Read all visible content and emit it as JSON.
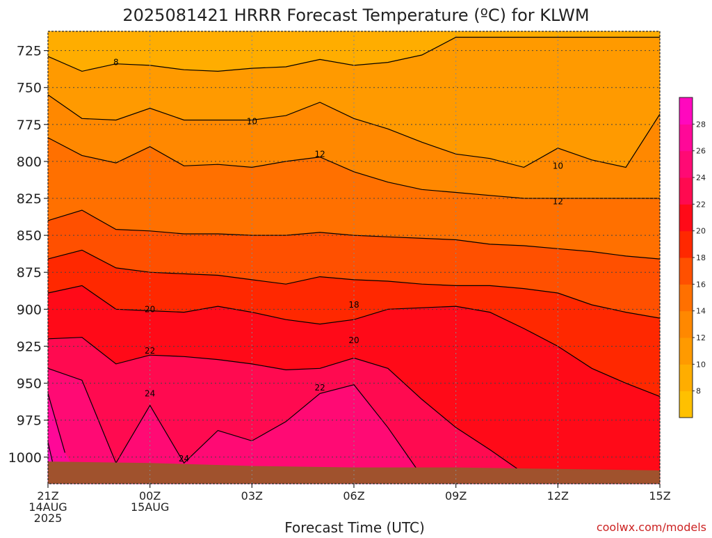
{
  "chart_data": {
    "type": "heatmap",
    "title": "2025081421 HRRR Forecast Temperature (ºC) for KLWM",
    "xlabel": "Forecast Time (UTC)",
    "ylabel": "",
    "watermark": "coolwx.com/models",
    "x_hours": [
      0,
      3,
      6,
      9,
      12,
      15,
      18
    ],
    "x_tick_labels": [
      [
        "21Z",
        "14AUG",
        "2025"
      ],
      [
        "00Z",
        "15AUG"
      ],
      [
        "03Z"
      ],
      [
        "06Z"
      ],
      [
        "09Z"
      ],
      [
        "12Z"
      ],
      [
        "15Z"
      ]
    ],
    "y_ticks": [
      725,
      750,
      775,
      800,
      825,
      850,
      875,
      900,
      925,
      950,
      975,
      1000
    ],
    "ylim": [
      1018,
      712
    ],
    "xlim": [
      0,
      18
    ],
    "colorbar": {
      "levels": [
        6,
        8,
        10,
        12,
        14,
        16,
        18,
        20,
        22,
        24,
        26,
        28,
        30
      ],
      "tick_labels": [
        "8",
        "10",
        "12",
        "14",
        "16",
        "18",
        "20",
        "22",
        "24",
        "26",
        "28"
      ],
      "colors": [
        "#ffc000",
        "#ffad00",
        "#ff9a00",
        "#ff8800",
        "#ff7000",
        "#ff5000",
        "#ff2800",
        "#ff0a18",
        "#ff0a50",
        "#ff0a74",
        "#ff0898",
        "#ff08be"
      ]
    },
    "contour_labels": [
      {
        "text": "8",
        "hour": 2,
        "p": 733
      },
      {
        "text": "10",
        "hour": 6,
        "p": 773
      },
      {
        "text": "10",
        "hour": 15,
        "p": 803
      },
      {
        "text": "12",
        "hour": 8,
        "p": 795
      },
      {
        "text": "12",
        "hour": 15,
        "p": 827
      },
      {
        "text": "18",
        "hour": 9,
        "p": 897
      },
      {
        "text": "20",
        "hour": 3,
        "p": 900
      },
      {
        "text": "20",
        "hour": 9,
        "p": 921
      },
      {
        "text": "22",
        "hour": 3,
        "p": 928
      },
      {
        "text": "22",
        "hour": 8,
        "p": 953
      },
      {
        "text": "24",
        "hour": 3,
        "p": 957
      },
      {
        "text": "24",
        "hour": 4,
        "p": 1001
      }
    ],
    "series": [
      {
        "level": 6,
        "hour": [
          0,
          18
        ],
        "p": [
          712,
          712
        ]
      },
      {
        "level": 8,
        "hour": [
          0,
          1,
          2,
          3,
          5,
          7,
          9,
          11,
          12,
          13,
          18
        ],
        "p": [
          712,
          712,
          712,
          712,
          712,
          712,
          712,
          712,
          712,
          712,
          712
        ]
      },
      {
        "level": 10,
        "hour": [
          0,
          1,
          2,
          3,
          4,
          5,
          6,
          7,
          8,
          9,
          10,
          11,
          12,
          13,
          14,
          15,
          16,
          17,
          18
        ],
        "p": [
          729,
          739,
          734,
          735,
          738,
          739,
          737,
          736,
          731,
          735,
          733,
          728,
          716,
          716,
          716,
          716,
          716,
          716,
          716
        ]
      },
      {
        "level": 12,
        "hour": [
          0,
          1,
          2,
          3,
          4,
          5,
          6,
          7,
          8,
          9,
          10,
          11,
          12,
          13,
          14,
          15,
          16,
          17,
          18
        ],
        "p": [
          755,
          771,
          772,
          764,
          772,
          772,
          772,
          769,
          760,
          771,
          778,
          787,
          795,
          798,
          804,
          791,
          799,
          804,
          768
        ]
      },
      {
        "level": 14,
        "hour": [
          0,
          1,
          2,
          3,
          4,
          5,
          6,
          7,
          8,
          9,
          10,
          11,
          12,
          13,
          14,
          15,
          16,
          17,
          18
        ],
        "p": [
          784,
          796,
          801,
          790,
          803,
          802,
          804,
          800,
          797,
          807,
          814,
          819,
          821,
          823,
          825,
          825,
          825,
          825,
          825
        ]
      },
      {
        "level": 16,
        "hour": [
          0,
          1,
          2,
          3,
          4,
          5,
          6,
          7,
          8,
          9,
          10,
          11,
          12,
          13,
          14,
          15,
          16,
          17,
          18
        ],
        "p": [
          840,
          833,
          846,
          847,
          849,
          849,
          850,
          850,
          848,
          850,
          851,
          852,
          853,
          856,
          857,
          859,
          861,
          864,
          866
        ]
      },
      {
        "level": 18,
        "hour": [
          0,
          1,
          2,
          3,
          4,
          5,
          6,
          7,
          8,
          9,
          10,
          11,
          12,
          13,
          14,
          15,
          16,
          17,
          18
        ],
        "p": [
          866,
          860,
          872,
          875,
          876,
          877,
          880,
          883,
          878,
          880,
          881,
          883,
          884,
          884,
          886,
          889,
          897,
          902,
          906
        ]
      },
      {
        "level": 20,
        "hour": [
          0,
          1,
          2,
          3,
          4,
          5,
          6,
          7,
          8,
          9,
          10,
          11,
          12,
          13,
          14,
          15,
          16,
          17,
          18
        ],
        "p": [
          889,
          884,
          900,
          901,
          902,
          898,
          902,
          907,
          910,
          907,
          900,
          899,
          898,
          902,
          913,
          925,
          940,
          950,
          959
        ]
      },
      {
        "level": 22,
        "hour": [
          0,
          1,
          2,
          3,
          4,
          5,
          6,
          7,
          8,
          9,
          10,
          11,
          12,
          13,
          14,
          15,
          16,
          17,
          18
        ],
        "p": [
          920,
          919,
          937,
          931,
          932,
          934,
          937,
          941,
          940,
          933,
          940,
          961,
          980,
          995,
          1011,
          1017,
          1018,
          1018,
          1018
        ]
      },
      {
        "level": 24,
        "hour": [
          0,
          1,
          2,
          3,
          4,
          5,
          6,
          7,
          8,
          9,
          10,
          11,
          12,
          13,
          14,
          15,
          16,
          17,
          18
        ],
        "p": [
          940,
          948,
          1004,
          965,
          1004,
          982,
          989,
          976,
          957,
          951,
          980,
          1013,
          1018,
          1018,
          1018,
          1018,
          1018,
          1018,
          1018
        ]
      },
      {
        "level": 26,
        "hour": [
          0,
          0.5,
          1,
          1.5,
          2,
          2.5,
          3,
          3.5,
          4
        ],
        "p": [
          957,
          997,
          1018,
          1018,
          1018,
          1018,
          1018,
          1018,
          1018
        ]
      },
      {
        "level": 28,
        "hour": [
          0,
          0.2,
          0.4,
          0.6,
          0.8,
          1
        ],
        "p": [
          990,
          1010,
          1018,
          1018,
          1018,
          1018
        ]
      },
      {
        "level": 30,
        "hour": [
          0,
          18
        ],
        "p": [
          1018,
          1018
        ]
      }
    ],
    "ground": {
      "hour": [
        0,
        3,
        6,
        9,
        12,
        15,
        18
      ],
      "p": [
        1003,
        1004,
        1006,
        1007,
        1007,
        1008,
        1009
      ],
      "color": "#a0522d"
    },
    "grid": true,
    "legend": "colorbar right"
  }
}
